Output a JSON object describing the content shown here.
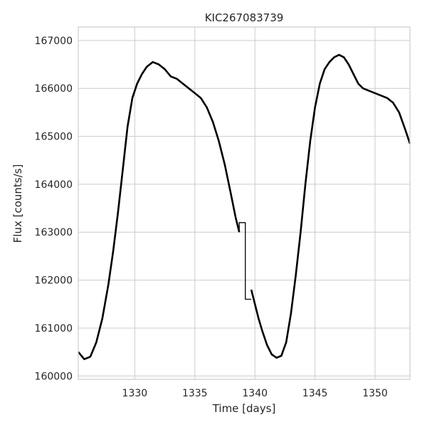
{
  "chart_data": {
    "type": "line",
    "title": "KIC267083739",
    "xlabel": "Time [days]",
    "ylabel": "Flux [counts/s]",
    "xlim": [
      1325.3,
      1352.9
    ],
    "ylim": [
      159930,
      167280
    ],
    "grid": true,
    "line_color": "#000000",
    "x_ticks": [
      1330,
      1335,
      1340,
      1345,
      1350
    ],
    "x_tick_labels": [
      "1330",
      "1335",
      "1340",
      "1345",
      "1350"
    ],
    "y_ticks": [
      160000,
      161000,
      162000,
      163000,
      164000,
      165000,
      166000,
      167000
    ],
    "y_tick_labels": [
      "160000",
      "161000",
      "162000",
      "163000",
      "164000",
      "165000",
      "166000",
      "167000"
    ],
    "series": [
      {
        "x": [
          1325.3,
          1325.8,
          1326.3,
          1326.8,
          1327.3,
          1327.8,
          1328.2,
          1328.6,
          1329.0,
          1329.4,
          1329.8,
          1330.2,
          1330.6,
          1331.0,
          1331.5,
          1332.0,
          1332.5,
          1333.0,
          1333.5,
          1334.0,
          1334.5,
          1335.0,
          1335.5,
          1336.0,
          1336.5,
          1337.0,
          1337.5,
          1338.0,
          1338.4,
          1338.7
        ],
        "y": [
          160500,
          160350,
          160400,
          160700,
          161200,
          161900,
          162600,
          163400,
          164300,
          165200,
          165800,
          166100,
          166300,
          166450,
          166550,
          166500,
          166400,
          166250,
          166200,
          166100,
          166000,
          165900,
          165800,
          165600,
          165300,
          164900,
          164400,
          163800,
          163300,
          163000
        ]
      },
      {
        "x": [
          1338.7,
          1338.7,
          1339.2,
          1339.2,
          1339.7
        ],
        "y": [
          163000,
          163200,
          163200,
          161600,
          161600
        ]
      },
      {
        "x": [
          1339.7,
          1340.0,
          1340.3,
          1340.6,
          1341.0,
          1341.4,
          1341.8,
          1342.2,
          1342.6,
          1343.0,
          1343.4,
          1343.8,
          1344.2,
          1344.6,
          1345.0,
          1345.4,
          1345.8,
          1346.2,
          1346.6,
          1347.0,
          1347.4,
          1347.8,
          1348.2,
          1348.6,
          1349.0,
          1349.5,
          1350.0,
          1350.5,
          1351.0,
          1351.5,
          1352.0,
          1352.5,
          1352.9
        ],
        "y": [
          161800,
          161500,
          161200,
          160950,
          160650,
          160450,
          160380,
          160420,
          160700,
          161300,
          162100,
          163000,
          164000,
          164900,
          165600,
          166100,
          166400,
          166550,
          166650,
          166700,
          166650,
          166500,
          166300,
          166100,
          166000,
          165950,
          165900,
          165850,
          165800,
          165700,
          165500,
          165150,
          164850
        ]
      }
    ]
  }
}
